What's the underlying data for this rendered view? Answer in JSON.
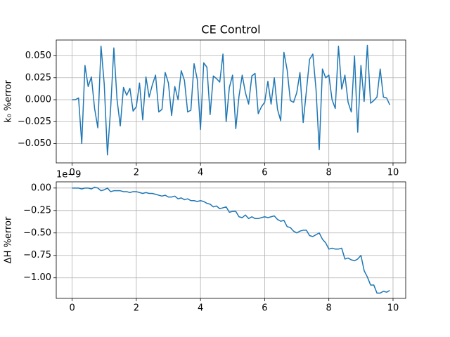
{
  "chart_data": [
    {
      "type": "line",
      "title": "CE Control",
      "y_label": "k₀ %error",
      "grid": true,
      "x": [
        0,
        0.1,
        0.2,
        0.3,
        0.4,
        0.5,
        0.6,
        0.7,
        0.8,
        0.9,
        1,
        1.1,
        1.2,
        1.3,
        1.4,
        1.5,
        1.6,
        1.7,
        1.8,
        1.9,
        2,
        2.1,
        2.2,
        2.3,
        2.4,
        2.5,
        2.6,
        2.7,
        2.8,
        2.9,
        3,
        3.1,
        3.2,
        3.3,
        3.4,
        3.5,
        3.6,
        3.7,
        3.8,
        3.9,
        4,
        4.1,
        4.2,
        4.3,
        4.4,
        4.5,
        4.6,
        4.7,
        4.8,
        4.9,
        5,
        5.1,
        5.2,
        5.3,
        5.4,
        5.5,
        5.6,
        5.7,
        5.8,
        5.9,
        6,
        6.1,
        6.2,
        6.3,
        6.4,
        6.5,
        6.6,
        6.7,
        6.8,
        6.9,
        7,
        7.1,
        7.2,
        7.3,
        7.4,
        7.5,
        7.6,
        7.7,
        7.8,
        7.9,
        8,
        8.1,
        8.2,
        8.3,
        8.4,
        8.5,
        8.6,
        8.7,
        8.8,
        8.9,
        9,
        9.1,
        9.2,
        9.3,
        9.4,
        9.5,
        9.6,
        9.7,
        9.8,
        9.9
      ],
      "series": [
        {
          "color": "#1f77b4",
          "values": [
            0,
            0,
            0.002,
            -0.05,
            0.039,
            0.015,
            0.026,
            -0.01,
            -0.032,
            0.061,
            0.018,
            -0.063,
            -0.01,
            0.059,
            0,
            -0.03,
            0.014,
            0.005,
            0.013,
            -0.013,
            -0.008,
            0.019,
            -0.023,
            0.026,
            0.003,
            0.017,
            0.028,
            -0.014,
            -0.011,
            0.031,
            0.019,
            -0.018,
            0.015,
            0,
            0.033,
            0.022,
            -0.014,
            -0.012,
            0.041,
            0.023,
            -0.034,
            0.042,
            0.037,
            -0.017,
            0.027,
            0.024,
            0.02,
            0.052,
            -0.025,
            0.014,
            0.028,
            -0.033,
            0.004,
            0.028,
            0.008,
            -0.005,
            0.027,
            0.03,
            -0.016,
            -0.008,
            -0.003,
            0.021,
            -0.005,
            0.025,
            -0.011,
            -0.024,
            0.054,
            0.034,
            -0.001,
            -0.003,
            0.008,
            0.031,
            -0.026,
            0.01,
            0.046,
            0.052,
            0.012,
            -0.057,
            0.035,
            0.025,
            0.028,
            0,
            -0.01,
            0.061,
            0.012,
            0.028,
            -0.003,
            -0.014,
            0.05,
            -0.037,
            0.039,
            -0.002,
            0.062,
            -0.004,
            -0.001,
            0.003,
            0.035,
            0.003,
            0.002,
            -0.006
          ]
        }
      ],
      "xlim": [
        -0.495,
        10.395
      ],
      "xticks": [
        0,
        2,
        4,
        6,
        8,
        10
      ],
      "ylim": [
        -0.072,
        0.068
      ],
      "yticks": [
        {
          "value": -0.05,
          "label": "−0.050"
        },
        {
          "value": -0.025,
          "label": "−0.025"
        },
        {
          "value": 0,
          "label": "0.000"
        },
        {
          "value": 0.025,
          "label": "0.025"
        },
        {
          "value": 0.05,
          "label": "0.050"
        }
      ]
    },
    {
      "type": "line",
      "y_label": "ΔH %error",
      "offset_text": "1e−9",
      "grid": true,
      "x": [
        0,
        0.1,
        0.2,
        0.3,
        0.4,
        0.5,
        0.6,
        0.7,
        0.8,
        0.9,
        1,
        1.1,
        1.2,
        1.3,
        1.4,
        1.5,
        1.6,
        1.7,
        1.8,
        1.9,
        2,
        2.1,
        2.2,
        2.3,
        2.4,
        2.5,
        2.6,
        2.7,
        2.8,
        2.9,
        3,
        3.1,
        3.2,
        3.3,
        3.4,
        3.5,
        3.6,
        3.7,
        3.8,
        3.9,
        4,
        4.1,
        4.2,
        4.3,
        4.4,
        4.5,
        4.6,
        4.7,
        4.8,
        4.9,
        5,
        5.1,
        5.2,
        5.3,
        5.4,
        5.5,
        5.6,
        5.7,
        5.8,
        5.9,
        6,
        6.1,
        6.2,
        6.3,
        6.4,
        6.5,
        6.6,
        6.7,
        6.8,
        6.9,
        7,
        7.1,
        7.2,
        7.3,
        7.4,
        7.5,
        7.6,
        7.7,
        7.8,
        7.9,
        8,
        8.1,
        8.2,
        8.3,
        8.4,
        8.5,
        8.6,
        8.7,
        8.8,
        8.9,
        9,
        9.1,
        9.2,
        9.3,
        9.4,
        9.5,
        9.6,
        9.7,
        9.8,
        9.9
      ],
      "series": [
        {
          "color": "#1f77b4",
          "values": [
            0,
            0,
            0,
            -0.01,
            0,
            0,
            -0.01,
            0.01,
            0,
            -0.03,
            -0.02,
            0,
            -0.04,
            -0.03,
            -0.03,
            -0.03,
            -0.04,
            -0.04,
            -0.05,
            -0.04,
            -0.04,
            -0.05,
            -0.06,
            -0.05,
            -0.06,
            -0.06,
            -0.07,
            -0.08,
            -0.09,
            -0.08,
            -0.1,
            -0.1,
            -0.09,
            -0.12,
            -0.11,
            -0.13,
            -0.12,
            -0.14,
            -0.14,
            -0.15,
            -0.14,
            -0.15,
            -0.17,
            -0.18,
            -0.21,
            -0.2,
            -0.23,
            -0.22,
            -0.21,
            -0.27,
            -0.26,
            -0.26,
            -0.32,
            -0.33,
            -0.3,
            -0.34,
            -0.32,
            -0.34,
            -0.34,
            -0.33,
            -0.32,
            -0.33,
            -0.32,
            -0.31,
            -0.35,
            -0.37,
            -0.36,
            -0.43,
            -0.44,
            -0.48,
            -0.5,
            -0.48,
            -0.47,
            -0.47,
            -0.53,
            -0.54,
            -0.52,
            -0.5,
            -0.57,
            -0.61,
            -0.68,
            -0.67,
            -0.68,
            -0.68,
            -0.67,
            -0.79,
            -0.78,
            -0.8,
            -0.81,
            -0.79,
            -0.75,
            -0.92,
            -0.99,
            -1.08,
            -1.08,
            -1.17,
            -1.17,
            -1.15,
            -1.16,
            -1.14
          ]
        }
      ],
      "xlim": [
        -0.495,
        10.395
      ],
      "xticks": [
        0,
        2,
        4,
        6,
        8,
        10
      ],
      "ylim": [
        -1.229,
        0.069
      ],
      "yticks": [
        {
          "value": -1,
          "label": "−1.00"
        },
        {
          "value": -0.75,
          "label": "−0.75"
        },
        {
          "value": -0.5,
          "label": "−0.50"
        },
        {
          "value": -0.25,
          "label": "−0.25"
        },
        {
          "value": 0,
          "label": "0.00"
        }
      ]
    }
  ]
}
